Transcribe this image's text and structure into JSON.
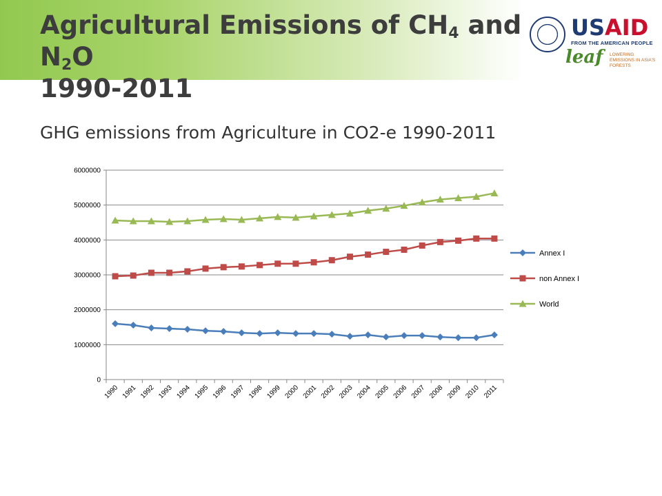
{
  "slide": {
    "title_line1_a": "Agricultural Emissions of CH",
    "title_sub1": "4",
    "title_line1_b": " and N",
    "title_sub2": "2",
    "title_line1_c": "O",
    "title_line2": "1990-2011",
    "subtitle": "GHG emissions from Agriculture in CO2-e 1990-2011"
  },
  "logos": {
    "usaid_us": "US",
    "usaid_aid": "AID",
    "usaid_tagline": "FROM THE AMERICAN PEOPLE",
    "leaf_word": "leaf",
    "leaf_tagline": "LOWERING EMISSIONS IN ASIA'S FORESTS"
  },
  "chart_data": {
    "type": "line",
    "title": "",
    "xlabel": "",
    "ylabel": "",
    "ylim": [
      0,
      6000000
    ],
    "yticks": [
      0,
      1000000,
      2000000,
      3000000,
      4000000,
      5000000,
      6000000
    ],
    "grid": "horizontal",
    "legend_position": "right",
    "categories": [
      "1990",
      "1991",
      "1992",
      "1993",
      "1994",
      "1995",
      "1996",
      "1997",
      "1998",
      "1999",
      "2000",
      "2001",
      "2002",
      "2003",
      "2004",
      "2005",
      "2006",
      "2007",
      "2008",
      "2009",
      "2010",
      "2011"
    ],
    "series": [
      {
        "name": "Annex I",
        "color": "#4a7ebb",
        "marker": "diamond",
        "values": [
          1600000,
          1560000,
          1480000,
          1460000,
          1440000,
          1400000,
          1380000,
          1340000,
          1320000,
          1340000,
          1320000,
          1320000,
          1300000,
          1240000,
          1280000,
          1220000,
          1260000,
          1260000,
          1220000,
          1200000,
          1200000,
          1280000
        ]
      },
      {
        "name": "non Annex I",
        "color": "#be4b48",
        "marker": "square",
        "values": [
          2960000,
          2980000,
          3060000,
          3060000,
          3100000,
          3180000,
          3220000,
          3240000,
          3280000,
          3320000,
          3320000,
          3360000,
          3420000,
          3520000,
          3580000,
          3660000,
          3720000,
          3840000,
          3940000,
          3980000,
          4040000,
          4040000
        ]
      },
      {
        "name": "World",
        "color": "#98b954",
        "marker": "triangle",
        "values": [
          4560000,
          4540000,
          4540000,
          4520000,
          4540000,
          4580000,
          4600000,
          4580000,
          4620000,
          4660000,
          4640000,
          4680000,
          4720000,
          4760000,
          4840000,
          4900000,
          4980000,
          5080000,
          5160000,
          5200000,
          5240000,
          5340000
        ]
      }
    ]
  }
}
